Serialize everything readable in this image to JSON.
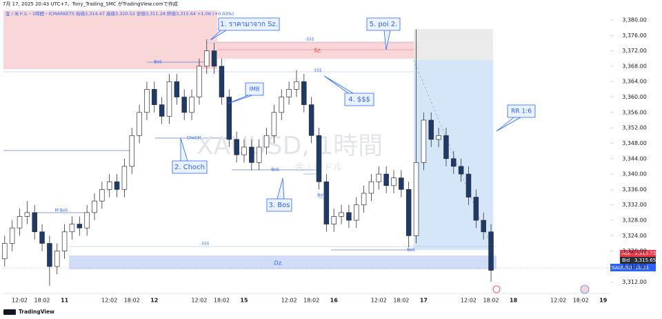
{
  "header": {
    "credit": "7月 17, 2025 20:43 UTC+7、Tony_Trading_SMC がTradingView.comで作成",
    "legend": "金 / 米ドル・1時間・ICMARKETS 始値3,314.47 高値3,320.52 安値3,311.28 終値3,315.64 +1.06 (+0.03%)"
  },
  "watermark": {
    "symbol": "XAUUSD, 1時間",
    "name": "金 / 米ドル"
  },
  "annotations": {
    "sz_callout": "1. ราคามาจาก Sz.",
    "poi": "5. poi 2.",
    "imb": "IMB",
    "liquidity": "4. $$$",
    "choch": "2. Choch",
    "bos": "3. Bos",
    "rr": "RR 1:6",
    "sz_zone": "Sz.",
    "dz_zone": "Dz.",
    "bos_top": "BoS",
    "choch_line": "ChoCH",
    "bos_mid": "BoS",
    "m_bos": "M BoS",
    "bos_low": "BoS",
    "bos_right": "BoS",
    "liq_top": "$$$",
    "liq_mid": "$$$",
    "liq_low": "$$$"
  },
  "price_tags": {
    "ask_label": "Ask",
    "ask": "3,315.72",
    "bid_label": "Bid",
    "bid": "3,315.65",
    "symbol": "XAUUSD",
    "time": "18:31"
  },
  "footer": {
    "brand": "TradingView"
  },
  "chart_data": {
    "type": "candlestick",
    "categories": [
      null,
      null,
      "12:02",
      null,
      null,
      "18:02",
      null,
      null,
      "11",
      null,
      null,
      null,
      null,
      null,
      "12:02",
      null,
      null,
      "18:02",
      null,
      null,
      "12",
      null,
      null,
      null,
      null,
      null,
      "12:02",
      null,
      null,
      "18:02",
      null,
      null,
      "15",
      null,
      null,
      null,
      null,
      null,
      "12:02",
      null,
      null,
      "18:02",
      null,
      null,
      "16",
      null,
      null,
      null,
      null,
      null,
      "12:02",
      null,
      null,
      "18:02",
      null,
      null,
      "17",
      null,
      null,
      null,
      null,
      null,
      "12:02",
      null,
      null,
      "18:02",
      null,
      null,
      "18",
      null,
      null,
      null,
      null,
      null,
      "12:02",
      null,
      null,
      "18:02",
      null,
      null,
      "19"
    ],
    "open": [
      3318,
      3322,
      3326,
      3329,
      3330,
      3325,
      3322,
      3316,
      3320,
      3325,
      3327,
      3326,
      3330,
      3333,
      3336,
      3338,
      3336,
      3342,
      3350,
      3356,
      3362,
      3358,
      3355,
      3364,
      3360,
      3356,
      3360,
      3368,
      3372,
      3368,
      3360,
      3349,
      3345,
      3347,
      3343,
      3347,
      3350,
      3356,
      3360,
      3362,
      3364,
      3358,
      3350,
      3338,
      3327,
      3329,
      3330,
      3328,
      3332,
      3335,
      3338,
      3340,
      3337,
      3339,
      3336,
      3324,
      3343,
      3354,
      3349,
      3350,
      3344,
      3342,
      3340,
      3334,
      3328,
      3325,
      null,
      null,
      null,
      null,
      null,
      null,
      null,
      null,
      null,
      null,
      null,
      null,
      null,
      null,
      null
    ],
    "high": [
      3324,
      3328,
      3331,
      3333,
      3332,
      3327,
      3324,
      3322,
      3327,
      3329,
      3329,
      3332,
      3335,
      3338,
      3340,
      3340,
      3344,
      3352,
      3358,
      3364,
      3364,
      3360,
      3366,
      3366,
      3362,
      3362,
      3370,
      3375,
      3374,
      3370,
      3362,
      3351,
      3349,
      3349,
      3349,
      3352,
      3358,
      3362,
      3364,
      3367,
      3366,
      3360,
      3352,
      3340,
      3331,
      3332,
      3332,
      3334,
      3337,
      3340,
      3342,
      3342,
      3341,
      3341,
      3338,
      3377.5,
      3356,
      3356,
      3352,
      3352,
      3346,
      3344,
      3342,
      3336,
      3330,
      3327,
      null,
      null,
      null,
      null,
      null,
      null,
      null,
      null,
      null,
      null,
      null,
      null,
      null,
      null,
      null
    ],
    "low": [
      3316,
      3320,
      3324,
      3327,
      3323,
      3320,
      3311,
      3314,
      3318,
      3323,
      3324,
      3324,
      3328,
      3331,
      3334,
      3334,
      3334,
      3340,
      3348,
      3354,
      3356,
      3353,
      3353,
      3358,
      3354,
      3354,
      3358,
      3366,
      3366,
      3358,
      3347,
      3343,
      3343,
      3341,
      3341,
      3345,
      3348,
      3354,
      3358,
      3360,
      3356,
      3348,
      3336,
      3325,
      3325,
      3327,
      3326,
      3326,
      3330,
      3333,
      3336,
      3335,
      3335,
      3334,
      3321,
      3322,
      3341,
      3347,
      3347,
      3342,
      3340,
      3338,
      3332,
      3326,
      3323,
      3312,
      null,
      null,
      null,
      null,
      null,
      null,
      null,
      null,
      null,
      null,
      null,
      null,
      null,
      null,
      null
    ],
    "close": [
      3322,
      3326,
      3329,
      3330,
      3325,
      3322,
      3316,
      3320,
      3325,
      3327,
      3326,
      3330,
      3333,
      3336,
      3338,
      3336,
      3342,
      3350,
      3356,
      3362,
      3358,
      3355,
      3364,
      3360,
      3356,
      3360,
      3368,
      3372,
      3368,
      3360,
      3349,
      3345,
      3347,
      3343,
      3347,
      3350,
      3356,
      3360,
      3362,
      3364,
      3358,
      3350,
      3338,
      3327,
      3329,
      3330,
      3328,
      3332,
      3335,
      3338,
      3340,
      3337,
      3339,
      3336,
      3324,
      3343,
      3354,
      3349,
      3350,
      3344,
      3342,
      3340,
      3334,
      3328,
      3325,
      3315,
      null,
      null,
      null,
      null,
      null,
      null,
      null,
      null,
      null,
      null,
      null,
      null,
      null,
      null,
      null
    ],
    "up_color": "#ffffff",
    "down_color": "#1e3a66",
    "wick_color": "#2a2e39",
    "ylim": [
      3309,
      3382.5
    ],
    "yticks": [
      {
        "value": 3312,
        "label": "3,312.00"
      },
      {
        "value": 3316,
        "label": "3,316.00"
      },
      {
        "value": 3320,
        "label": "3,320.00"
      },
      {
        "value": 3324,
        "label": "3,324.00"
      },
      {
        "value": 3328,
        "label": "3,328.00"
      },
      {
        "value": 3332,
        "label": "3,332.00"
      },
      {
        "value": 3336,
        "label": "3,336.00"
      },
      {
        "value": 3340,
        "label": "3,340.00"
      },
      {
        "value": 3344,
        "label": "3,344.00"
      },
      {
        "value": 3348,
        "label": "3,348.00"
      },
      {
        "value": 3352,
        "label": "3,352.00"
      },
      {
        "value": 3356,
        "label": "3,356.00"
      },
      {
        "value": 3360,
        "label": "3,360.00"
      },
      {
        "value": 3364,
        "label": "3,364.00"
      },
      {
        "value": 3368,
        "label": "3,368.00"
      },
      {
        "value": 3372,
        "label": "3,372.00"
      },
      {
        "value": 3376,
        "label": "3,376.00"
      },
      {
        "value": 3380,
        "label": "3,380.00"
      }
    ],
    "grid": false
  }
}
